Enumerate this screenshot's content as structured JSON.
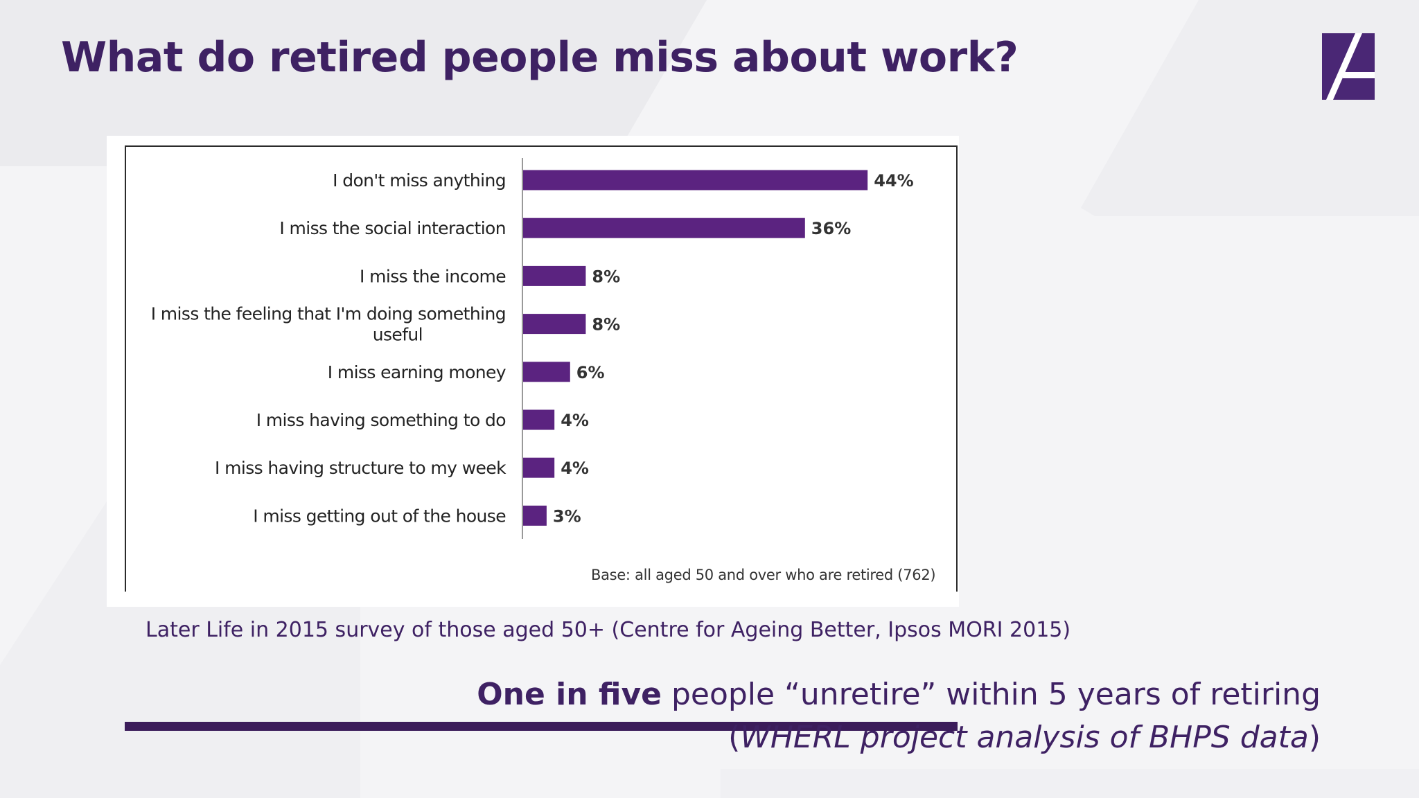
{
  "slide": {
    "title": "What do retired people miss about work?",
    "source_caption": "Later Life in 2015 survey of those aged 50+ (Centre for Ageing Better, Ipsos MORI 2015)",
    "callout": {
      "bold": "One in five",
      "text": " people “unretire” within 5 years of retiring",
      "line2_open": "(",
      "line2_italic": "WHERL project analysis of BHPS data",
      "line2_close": ")"
    }
  },
  "colors": {
    "accent": "#3e2163",
    "bar": "#5b2380",
    "chart_band": "#3b1c5a"
  },
  "icons": {
    "logo": "angled-a-logo-icon"
  },
  "chart_data": {
    "type": "bar",
    "orientation": "horizontal",
    "categories": [
      [
        "I don't miss anything"
      ],
      [
        "I miss the social interaction"
      ],
      [
        "I miss the income"
      ],
      [
        "I miss the feeling that I'm doing something",
        "useful"
      ],
      [
        "I miss earning money"
      ],
      [
        "I miss having something to do"
      ],
      [
        "I miss having structure to my week"
      ],
      [
        "I miss getting out of the house"
      ]
    ],
    "values": [
      44,
      36,
      8,
      8,
      6,
      4,
      4,
      3
    ],
    "value_labels": [
      "44%",
      "36%",
      "8%",
      "8%",
      "6%",
      "4%",
      "4%",
      "3%"
    ],
    "xlim": [
      0,
      50
    ],
    "grid": false,
    "base_note": "Base: all aged 50 and over who are retired (762)"
  }
}
